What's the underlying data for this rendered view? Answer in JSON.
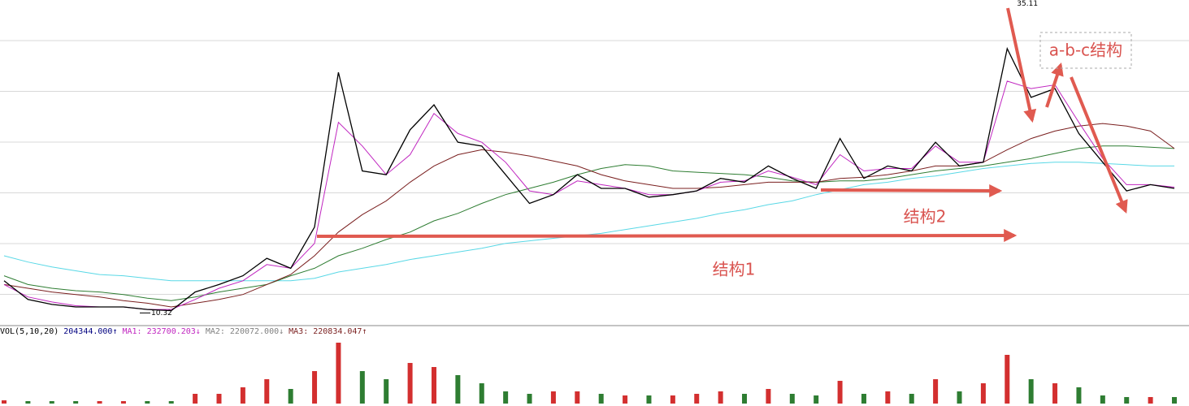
{
  "chart_data": {
    "type": "stock",
    "categories": [
      null,
      null,
      null,
      null,
      null,
      null,
      null,
      null,
      null,
      null,
      null,
      null,
      null,
      null,
      null,
      null,
      null,
      null,
      null,
      null,
      null,
      null,
      null,
      null,
      null,
      null,
      null,
      null,
      null,
      null,
      null,
      null,
      null,
      null,
      null,
      null,
      null,
      null,
      null,
      null,
      null,
      null,
      null,
      null,
      null,
      null,
      null,
      null,
      null,
      null
    ],
    "ylim": [
      9.5,
      35.4
    ],
    "grid": true,
    "series": [
      {
        "color": "#59d8e6",
        "values": [
          14.9,
          14.4,
          14.0,
          13.7,
          13.4,
          13.3,
          13.1,
          12.9,
          12.9,
          12.9,
          12.9,
          12.9,
          12.9,
          13.1,
          13.6,
          13.9,
          14.2,
          14.6,
          14.9,
          15.2,
          15.5,
          15.9,
          16.1,
          16.3,
          16.5,
          16.7,
          17.0,
          17.3,
          17.6,
          17.9,
          18.3,
          18.6,
          19.0,
          19.3,
          19.8,
          20.2,
          20.6,
          20.8,
          21.1,
          21.3,
          21.6,
          21.9,
          22.1,
          22.3,
          22.4,
          22.4,
          22.3,
          22.2,
          22.1,
          22.1
        ]
      },
      {
        "color": "#2e7d32",
        "values": [
          13.3,
          12.6,
          12.3,
          12.1,
          12.0,
          11.8,
          11.5,
          11.3,
          11.6,
          12.0,
          12.3,
          12.6,
          13.3,
          13.9,
          14.9,
          15.5,
          16.2,
          16.8,
          17.7,
          18.3,
          19.1,
          19.8,
          20.3,
          20.8,
          21.4,
          21.9,
          22.2,
          22.1,
          21.7,
          21.6,
          21.5,
          21.4,
          21.2,
          20.9,
          20.8,
          20.9,
          20.9,
          21.1,
          21.4,
          21.7,
          21.9,
          22.1,
          22.4,
          22.7,
          23.1,
          23.5,
          23.7,
          23.7,
          23.6,
          23.5
        ]
      },
      {
        "color": "#7a1f1f",
        "values": [
          12.6,
          12.3,
          12.0,
          11.8,
          11.6,
          11.3,
          11.1,
          10.8,
          11.1,
          11.4,
          11.8,
          12.6,
          13.4,
          14.9,
          16.8,
          18.2,
          19.3,
          20.8,
          22.1,
          23.0,
          23.4,
          23.2,
          22.9,
          22.5,
          22.1,
          21.4,
          20.9,
          20.6,
          20.3,
          20.3,
          20.4,
          20.6,
          20.8,
          20.8,
          20.8,
          21.1,
          21.2,
          21.4,
          21.7,
          22.1,
          22.1,
          22.4,
          23.4,
          24.3,
          24.9,
          25.3,
          25.5,
          25.3,
          24.9,
          23.5
        ]
      },
      {
        "color": "#c026c0",
        "values": [
          12.6,
          11.6,
          11.2,
          10.9,
          10.8,
          10.8,
          10.6,
          10.6,
          11.4,
          12.3,
          12.9,
          14.2,
          13.9,
          15.9,
          25.6,
          23.7,
          21.4,
          23.0,
          26.3,
          24.7,
          24.0,
          22.4,
          20.1,
          19.8,
          20.9,
          20.6,
          20.3,
          19.8,
          19.8,
          20.1,
          20.8,
          20.9,
          21.7,
          21.2,
          20.6,
          23.0,
          21.7,
          21.9,
          21.9,
          23.7,
          22.4,
          22.4,
          28.9,
          28.3,
          28.6,
          25.6,
          22.7,
          20.6,
          20.6,
          20.4
        ]
      },
      {
        "color": "#000000",
        "values": [
          12.9,
          11.4,
          11.0,
          10.8,
          10.8,
          10.8,
          10.6,
          10.5,
          12.0,
          12.6,
          13.3,
          14.7,
          13.9,
          17.2,
          29.6,
          21.7,
          21.4,
          25.0,
          27.0,
          24.0,
          23.7,
          21.4,
          19.1,
          19.8,
          21.4,
          20.3,
          20.3,
          19.6,
          19.8,
          20.1,
          21.1,
          20.8,
          22.1,
          21.1,
          20.3,
          24.3,
          21.1,
          22.1,
          21.7,
          24.0,
          22.1,
          22.4,
          31.5,
          27.6,
          28.3,
          24.7,
          22.4,
          20.1,
          20.6,
          20.3
        ]
      }
    ],
    "high": 35.11,
    "low": 10.32,
    "annotations": [
      "a-b-c结构",
      "结构2",
      "结构1"
    ],
    "volume": {
      "legend": [
        "VOL(5,10,20)",
        "204344.000↑",
        "MA1: 232700.203↓",
        "MA2: 220072.000↓",
        "MA3: 220834.047↑"
      ],
      "legend_colors": [
        "#000000",
        "#000080",
        "#c026c0",
        "#808080",
        "#7a1f1f"
      ],
      "ylim": [
        0,
        1540000
      ],
      "up_color": "#d32f2f",
      "down_color": "#2e7d32",
      "values": [
        73000,
        55000,
        55000,
        55000,
        55000,
        55000,
        55000,
        55000,
        220000,
        220000,
        367000,
        550000,
        330000,
        733000,
        1375000,
        733000,
        550000,
        917000,
        825000,
        642000,
        458000,
        275000,
        220000,
        275000,
        275000,
        220000,
        183000,
        183000,
        183000,
        220000,
        275000,
        220000,
        330000,
        220000,
        183000,
        513000,
        220000,
        275000,
        220000,
        550000,
        275000,
        458000,
        1100000,
        550000,
        458000,
        367000,
        183000,
        147000,
        147000,
        147000
      ]
    }
  }
}
